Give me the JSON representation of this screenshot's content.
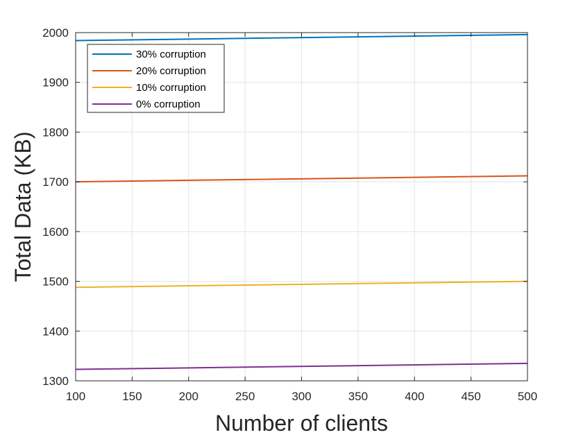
{
  "chart_data": {
    "type": "line",
    "xlabel": "Number of clients",
    "ylabel": "Total Data (KB)",
    "xlim": [
      100,
      500
    ],
    "ylim": [
      1300,
      2000
    ],
    "xticks": [
      100,
      150,
      200,
      250,
      300,
      350,
      400,
      450,
      500
    ],
    "yticks": [
      1300,
      1400,
      1500,
      1600,
      1700,
      1800,
      1900,
      2000
    ],
    "grid": true,
    "legend_position": "top-left",
    "x": [
      100,
      500
    ],
    "series": [
      {
        "name": "30% corruption",
        "color": "#0072BD",
        "values": [
          1984,
          1996
        ]
      },
      {
        "name": "20% corruption",
        "color": "#D95319",
        "values": [
          1700,
          1712
        ]
      },
      {
        "name": "10% corruption",
        "color": "#EDB120",
        "values": [
          1488,
          1500
        ]
      },
      {
        "name": "0% corruption",
        "color": "#7E2F8E",
        "values": [
          1323,
          1335
        ]
      }
    ]
  }
}
